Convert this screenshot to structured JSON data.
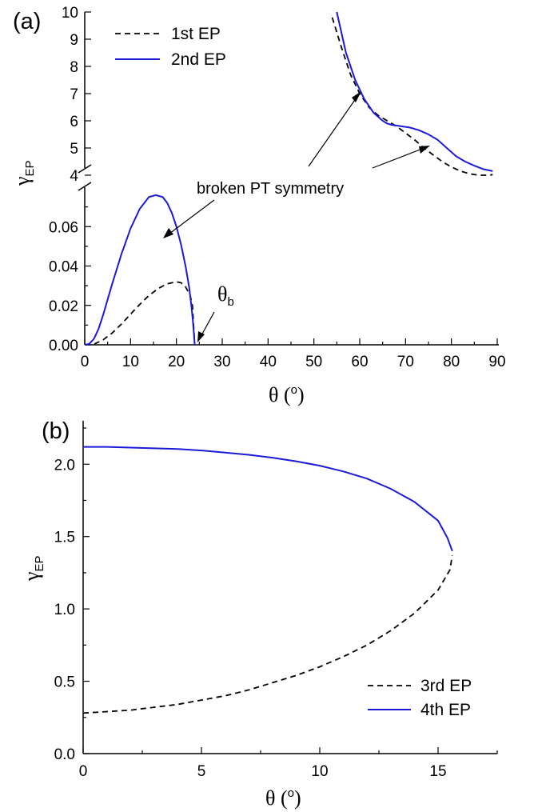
{
  "chart_data": [
    {
      "type": "line",
      "panel_label": "(a)",
      "xlabel": "θ (o)",
      "xlabel_symbol": "θ",
      "xlabel_unit": "o",
      "ylabel_symbol": "γ",
      "ylabel_sub": "EP",
      "xlim": [
        0,
        90
      ],
      "xticks": [
        "0",
        "10",
        "20",
        "30",
        "40",
        "50",
        "60",
        "70",
        "80",
        "90"
      ],
      "ylim_lower": [
        0,
        0.08
      ],
      "yticks_lower": [
        "0.00",
        "0.02",
        "0.04",
        "0.06"
      ],
      "ylim_upper": [
        4,
        10
      ],
      "yticks_upper": [
        "4",
        "5",
        "6",
        "7",
        "8",
        "9",
        "10"
      ],
      "axis_break": true,
      "legend_position": "top-left",
      "annotations": {
        "broken_symmetry": "broken PT symmetry",
        "theta_b_symbol": "θ",
        "theta_b_sub": "b"
      },
      "series": [
        {
          "name": "1st EP",
          "style": "dashed",
          "color": "#000000",
          "segments": [
            {
              "x": [
                0,
                2,
                4,
                6,
                8,
                10,
                12,
                14,
                16,
                18,
                20,
                21,
                22,
                23,
                23.5,
                24
              ],
              "y": [
                0,
                0.0003,
                0.0025,
                0.006,
                0.0105,
                0.0155,
                0.0205,
                0.025,
                0.0285,
                0.031,
                0.032,
                0.0315,
                0.0295,
                0.025,
                0.02,
                0
              ]
            },
            {
              "x": [
                54,
                56,
                58,
                60,
                62,
                64,
                66,
                68,
                70,
                72,
                74,
                76,
                78,
                80,
                82,
                84,
                86,
                88,
                89
              ],
              "y": [
                9.8,
                8.7,
                7.7,
                7.0,
                6.5,
                6.2,
                6.0,
                5.8,
                5.55,
                5.3,
                5.0,
                4.75,
                4.5,
                4.3,
                4.15,
                4.05,
                4.0,
                4.0,
                4.02
              ]
            }
          ]
        },
        {
          "name": "2nd EP",
          "style": "solid",
          "color": "#1a1ad8",
          "segments": [
            {
              "x": [
                0,
                1,
                2,
                3,
                4,
                6,
                8,
                10,
                12,
                14,
                15.5,
                17,
                18,
                19,
                20,
                21,
                22,
                22.8,
                23.3,
                23.6,
                23.8,
                24
              ],
              "y": [
                0,
                0.0005,
                0.003,
                0.008,
                0.015,
                0.031,
                0.046,
                0.059,
                0.069,
                0.075,
                0.076,
                0.075,
                0.072,
                0.067,
                0.06,
                0.051,
                0.04,
                0.029,
                0.019,
                0.012,
                0.006,
                0
              ]
            },
            {
              "x": [
                55,
                57,
                59,
                61,
                63,
                65,
                66,
                67,
                69,
                71,
                73,
                75,
                77,
                79,
                81,
                83,
                85,
                87,
                89
              ],
              "y": [
                10,
                8.5,
                7.5,
                6.8,
                6.3,
                6.0,
                5.9,
                5.85,
                5.8,
                5.75,
                5.65,
                5.5,
                5.3,
                5.0,
                4.7,
                4.5,
                4.35,
                4.22,
                4.15
              ]
            }
          ]
        }
      ]
    },
    {
      "type": "line",
      "panel_label": "(b)",
      "xlabel": "θ (o)",
      "xlabel_symbol": "θ",
      "xlabel_unit": "o",
      "ylabel_symbol": "γ",
      "ylabel_sub": "EP",
      "xlim": [
        0,
        17.5
      ],
      "xticks": [
        "0",
        "5",
        "10",
        "15"
      ],
      "ylim": [
        0,
        2.3
      ],
      "yticks": [
        "0.0",
        "0.5",
        "1.0",
        "1.5",
        "2.0"
      ],
      "legend_position": "bottom-right",
      "series": [
        {
          "name": "3rd EP",
          "style": "dashed",
          "color": "#000000",
          "x": [
            0,
            1,
            2,
            3,
            4,
            5,
            6,
            7,
            8,
            9,
            10,
            11,
            12,
            13,
            14,
            15,
            15.5,
            15.6
          ],
          "y": [
            0.28,
            0.29,
            0.3,
            0.32,
            0.34,
            0.37,
            0.4,
            0.44,
            0.49,
            0.54,
            0.6,
            0.67,
            0.75,
            0.85,
            0.97,
            1.13,
            1.27,
            1.37
          ]
        },
        {
          "name": "4th EP",
          "style": "solid",
          "color": "#1a1ad8",
          "x": [
            0,
            1,
            2,
            3,
            4,
            5,
            6,
            7,
            8,
            9,
            10,
            11,
            12,
            13,
            14,
            15,
            15.4,
            15.6
          ],
          "y": [
            2.12,
            2.12,
            2.115,
            2.11,
            2.105,
            2.095,
            2.08,
            2.065,
            2.045,
            2.02,
            1.99,
            1.95,
            1.9,
            1.83,
            1.74,
            1.61,
            1.49,
            1.4
          ]
        }
      ]
    }
  ]
}
